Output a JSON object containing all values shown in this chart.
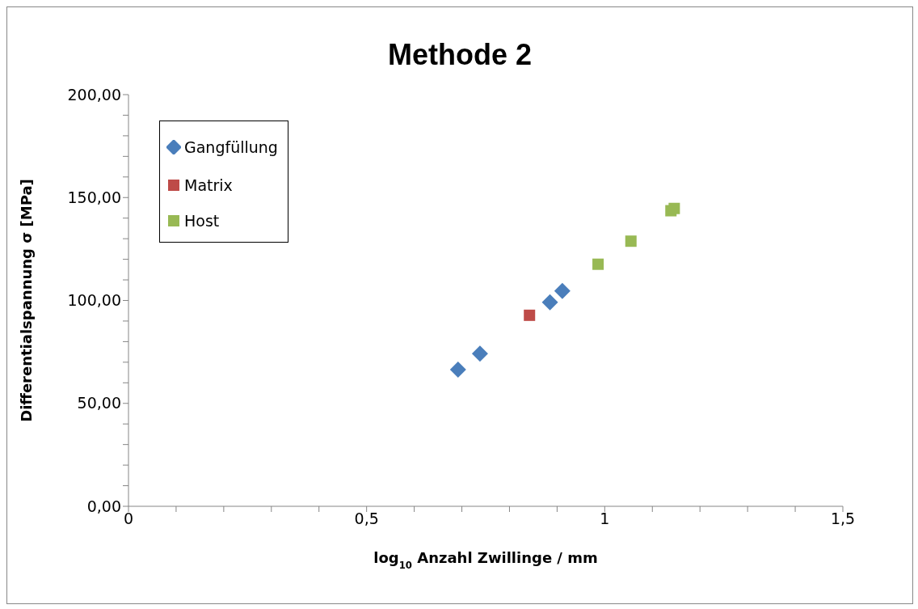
{
  "chart_data": {
    "type": "scatter",
    "title": "Methode 2",
    "xlabel": "log$_{10}$  Anzahl Zwillinge / mm",
    "ylabel": "Differentialspannung σ [MPa]",
    "xlim": [
      0,
      1.5
    ],
    "xticks": [
      {
        "value": 0,
        "label": "0"
      },
      {
        "value": 0.1,
        "label": null
      },
      {
        "value": 0.2,
        "label": null
      },
      {
        "value": 0.3,
        "label": null
      },
      {
        "value": 0.4,
        "label": null
      },
      {
        "value": 0.5,
        "label": "0,5"
      },
      {
        "value": 0.6,
        "label": null
      },
      {
        "value": 0.7,
        "label": null
      },
      {
        "value": 0.8,
        "label": null
      },
      {
        "value": 0.9,
        "label": null
      },
      {
        "value": 1,
        "label": "1"
      },
      {
        "value": 1.1,
        "label": null
      },
      {
        "value": 1.2,
        "label": null
      },
      {
        "value": 1.3,
        "label": null
      },
      {
        "value": 1.4,
        "label": null
      },
      {
        "value": 1.5,
        "label": "1,5"
      }
    ],
    "ylim": [
      0,
      200
    ],
    "yticks": [
      {
        "value": 0,
        "label": "0,00"
      },
      {
        "value": 10,
        "label": null
      },
      {
        "value": 20,
        "label": null
      },
      {
        "value": 30,
        "label": null
      },
      {
        "value": 40,
        "label": null
      },
      {
        "value": 50,
        "label": "50,00"
      },
      {
        "value": 60,
        "label": null
      },
      {
        "value": 70,
        "label": null
      },
      {
        "value": 80,
        "label": null
      },
      {
        "value": 90,
        "label": null
      },
      {
        "value": 100,
        "label": "100,00"
      },
      {
        "value": 110,
        "label": null
      },
      {
        "value": 120,
        "label": null
      },
      {
        "value": 130,
        "label": null
      },
      {
        "value": 140,
        "label": null
      },
      {
        "value": 150,
        "label": "150,00"
      },
      {
        "value": 160,
        "label": null
      },
      {
        "value": 170,
        "label": null
      },
      {
        "value": 180,
        "label": null
      },
      {
        "value": 190,
        "label": null
      },
      {
        "value": 200,
        "label": "200,00"
      }
    ],
    "grid": false,
    "legend": "top left",
    "series": [
      {
        "name": "Gangfüllung",
        "color": "#4a7ebb",
        "marker": "diamond",
        "x": [
          0.692,
          0.738,
          0.885,
          0.911
        ],
        "values": [
          66.4,
          74.2,
          99.1,
          104.6
        ]
      },
      {
        "name": "Matrix",
        "color": "#be4b48",
        "marker": "square",
        "x": [
          0.842
        ],
        "values": [
          92.8
        ]
      },
      {
        "name": "Host",
        "color": "#98b954",
        "marker": "square",
        "x": [
          0.986,
          1.055,
          1.139,
          1.146
        ],
        "values": [
          117.6,
          128.8,
          143.6,
          144.7
        ]
      }
    ]
  }
}
